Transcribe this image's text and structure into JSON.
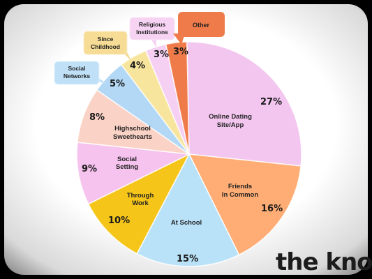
{
  "chart_data": {
    "type": "pie",
    "title": "",
    "unit": "%",
    "slices": [
      {
        "label": "Online Dating Site/App",
        "value": 27,
        "value_label": "27%",
        "color": "#f3c6ef"
      },
      {
        "label": "Friends In Common",
        "value": 16,
        "value_label": "16%",
        "color": "#ffad74"
      },
      {
        "label": "At School",
        "value": 15,
        "value_label": "15%",
        "color": "#b9e2f8"
      },
      {
        "label": "Through Work",
        "value": 10,
        "value_label": "10%",
        "color": "#f5c51a"
      },
      {
        "label": "Social Setting",
        "value": 9,
        "value_label": "9%",
        "color": "#f6c2ee"
      },
      {
        "label": "Highschool Sweethearts",
        "value": 8,
        "value_label": "8%",
        "color": "#fbd3c6"
      },
      {
        "label": "Social Networks",
        "value": 5,
        "value_label": "5%",
        "color": "#b2d8f6"
      },
      {
        "label": "Since Childhood",
        "value": 4,
        "value_label": "4%",
        "color": "#f8e59d"
      },
      {
        "label": "Religious Institutions",
        "value": 3,
        "value_label": "3%",
        "color": "#f6d0f2"
      },
      {
        "label": "Other",
        "value": 3,
        "value_label": "3%",
        "color": "#f07b4a"
      }
    ]
  },
  "callouts": {
    "social_networks": {
      "line1": "Social",
      "line2": "Networks",
      "color": "#bfe0f7"
    },
    "since_childhood": {
      "line1": "Since",
      "line2": "Childhood",
      "color": "#f6dc95"
    },
    "religious": {
      "line1": "Religious",
      "line2": "Institutions",
      "color": "#f6d3f3"
    },
    "other": {
      "line1": "Other",
      "color": "#f07b4a"
    }
  },
  "inside_labels": {
    "online_dating": {
      "line1": "Online Dating",
      "line2": "Site/App"
    },
    "friends": {
      "line1": "Friends",
      "line2": "In Common"
    },
    "school": {
      "line1": "At School"
    },
    "work": {
      "line1": "Through",
      "line2": "Work"
    },
    "social_setting": {
      "line1": "Social",
      "line2": "Setting"
    },
    "highschool": {
      "line1": "Highschool",
      "line2": "Sweethearts"
    }
  },
  "brand": {
    "logo": "the knot"
  }
}
